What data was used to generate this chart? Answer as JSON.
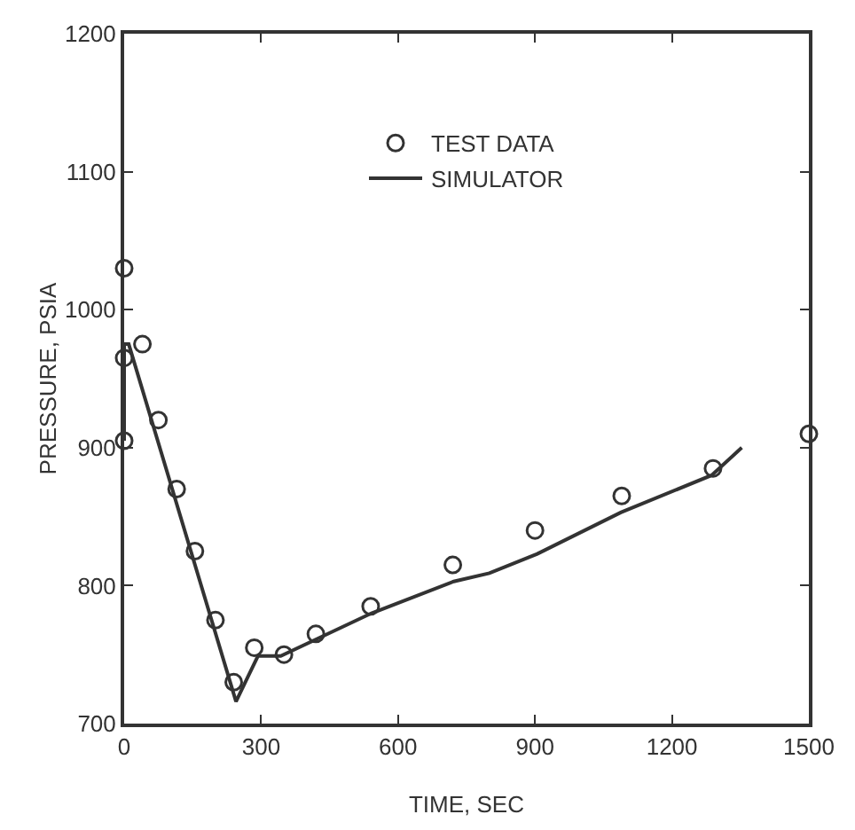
{
  "chart_data": {
    "type": "scatter",
    "xlabel": "TIME, SEC",
    "ylabel": "PRESSURE, PSIA",
    "xlim": [
      0,
      1500
    ],
    "xticks": [
      0,
      300,
      600,
      900,
      1200,
      1500
    ],
    "ylim": [
      700,
      1200
    ],
    "yticks": [
      700,
      800,
      900,
      1000,
      1100,
      1200
    ],
    "grid": false,
    "legend": "top",
    "series": [
      {
        "name": "TEST DATA",
        "marker": "circle",
        "color": "#333333",
        "x": [
          0,
          0,
          0,
          40,
          75,
          115,
          155,
          200,
          240,
          285,
          350,
          420,
          540,
          720,
          900,
          1090,
          1290,
          1500
        ],
        "values": [
          1030,
          965,
          905,
          975,
          920,
          870,
          825,
          775,
          730,
          755,
          750,
          765,
          785,
          815,
          840,
          865,
          885,
          910
        ]
      },
      {
        "name": "SIMULATOR",
        "type": "line",
        "line_style": "solid",
        "color": "#333333",
        "x": [
          0,
          0,
          10,
          245,
          293,
          343,
          542,
          722,
          800,
          905,
          1088,
          1287,
          1353
        ],
        "values": [
          905,
          975,
          975,
          716,
          749,
          749,
          780,
          803,
          809,
          823,
          853,
          880,
          900
        ]
      }
    ]
  }
}
